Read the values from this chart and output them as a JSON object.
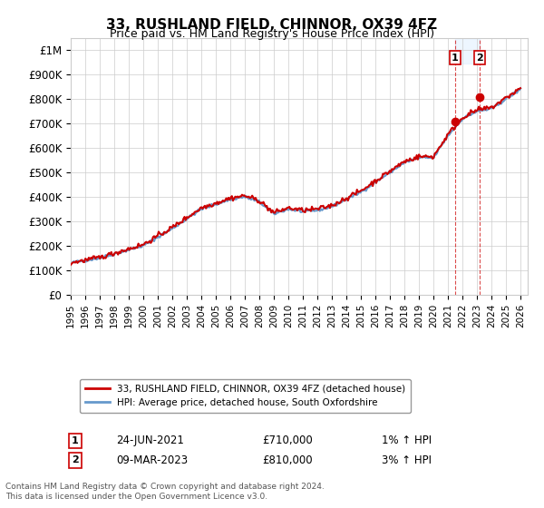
{
  "title": "33, RUSHLAND FIELD, CHINNOR, OX39 4FZ",
  "subtitle": "Price paid vs. HM Land Registry's House Price Index (HPI)",
  "ylabel_ticks": [
    "£0",
    "£100K",
    "£200K",
    "£300K",
    "£400K",
    "£500K",
    "£600K",
    "£700K",
    "£800K",
    "£900K",
    "£1M"
  ],
  "ytick_values": [
    0,
    100000,
    200000,
    300000,
    400000,
    500000,
    600000,
    700000,
    800000,
    900000,
    1000000
  ],
  "ylim": [
    0,
    1050000
  ],
  "xlim_start": 1995.0,
  "xlim_end": 2026.5,
  "hpi_color": "#6699cc",
  "price_color": "#cc0000",
  "annotation_color": "#cc0000",
  "grid_color": "#cccccc",
  "background_color": "#ffffff",
  "legend_label_price": "33, RUSHLAND FIELD, CHINNOR, OX39 4FZ (detached house)",
  "legend_label_hpi": "HPI: Average price, detached house, South Oxfordshire",
  "transaction1_label": "1",
  "transaction1_date": "24-JUN-2021",
  "transaction1_price": "£710,000",
  "transaction1_hpi": "1% ↑ HPI",
  "transaction1_x": 2021.48,
  "transaction1_y": 710000,
  "transaction2_label": "2",
  "transaction2_date": "09-MAR-2023",
  "transaction2_price": "£810,000",
  "transaction2_hpi": "3% ↑ HPI",
  "transaction2_x": 2023.19,
  "transaction2_y": 810000,
  "vline1_x": 2021.48,
  "vline2_x": 2023.19,
  "footer": "Contains HM Land Registry data © Crown copyright and database right 2024.\nThis data is licensed under the Open Government Licence v3.0.",
  "xtick_years": [
    1995,
    1996,
    1997,
    1998,
    1999,
    2000,
    2001,
    2002,
    2003,
    2004,
    2005,
    2006,
    2007,
    2008,
    2009,
    2010,
    2011,
    2012,
    2013,
    2014,
    2015,
    2016,
    2017,
    2018,
    2019,
    2020,
    2021,
    2022,
    2023,
    2024,
    2025,
    2026
  ]
}
